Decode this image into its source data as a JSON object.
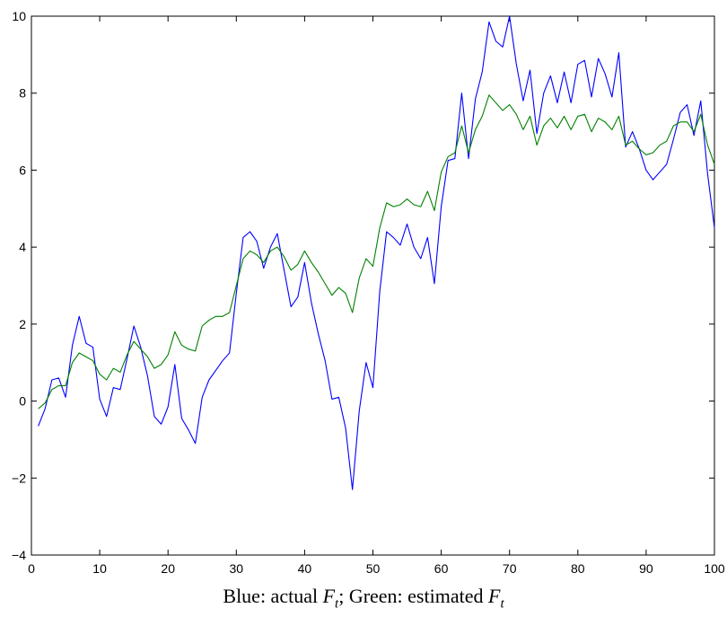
{
  "caption": {
    "blue_prefix": "Blue: actual ",
    "green_prefix": "; Green: estimated ",
    "var": "F",
    "sub": "t"
  },
  "chart_data": {
    "type": "line",
    "xlim": [
      0,
      100
    ],
    "ylim": [
      -4,
      10
    ],
    "xticks": [
      0,
      10,
      20,
      30,
      40,
      50,
      60,
      70,
      80,
      90,
      100
    ],
    "yticks": [
      -4,
      -2,
      0,
      2,
      4,
      6,
      8,
      10
    ],
    "ytick_labels": [
      "−4",
      "−2",
      "0",
      "2",
      "4",
      "6",
      "8",
      "10"
    ],
    "grid": false,
    "x": [
      1,
      2,
      3,
      4,
      5,
      6,
      7,
      8,
      9,
      10,
      11,
      12,
      13,
      14,
      15,
      16,
      17,
      18,
      19,
      20,
      21,
      22,
      23,
      24,
      25,
      26,
      27,
      28,
      29,
      30,
      31,
      32,
      33,
      34,
      35,
      36,
      37,
      38,
      39,
      40,
      41,
      42,
      43,
      44,
      45,
      46,
      47,
      48,
      49,
      50,
      51,
      52,
      53,
      54,
      55,
      56,
      57,
      58,
      59,
      60,
      61,
      62,
      63,
      64,
      65,
      66,
      67,
      68,
      69,
      70,
      71,
      72,
      73,
      74,
      75,
      76,
      77,
      78,
      79,
      80,
      81,
      82,
      83,
      84,
      85,
      86,
      87,
      88,
      89,
      90,
      91,
      92,
      93,
      94,
      95,
      96,
      97,
      98,
      99,
      100
    ],
    "series": [
      {
        "color": "#0000ff",
        "values": [
          -0.65,
          -0.2,
          0.55,
          0.6,
          0.1,
          1.45,
          2.2,
          1.5,
          1.4,
          0.05,
          -0.4,
          0.35,
          0.3,
          1.1,
          1.95,
          1.4,
          0.65,
          -0.4,
          -0.6,
          -0.15,
          0.95,
          -0.45,
          -0.75,
          -1.1,
          0.1,
          0.55,
          0.8,
          1.05,
          1.25,
          2.8,
          4.25,
          4.4,
          4.15,
          3.45,
          4.0,
          4.35,
          3.4,
          2.45,
          2.7,
          3.6,
          2.55,
          1.75,
          1.05,
          0.05,
          0.1,
          -0.7,
          -2.3,
          -0.25,
          1.0,
          0.35,
          2.85,
          4.4,
          4.25,
          4.05,
          4.6,
          4.0,
          3.7,
          4.25,
          3.05,
          5.05,
          6.25,
          6.3,
          8.0,
          6.3,
          7.85,
          8.55,
          9.85,
          9.35,
          9.2,
          10.0,
          8.75,
          7.8,
          8.6,
          6.95,
          8.0,
          8.45,
          7.75,
          8.55,
          7.75,
          8.75,
          8.85,
          7.9,
          8.9,
          8.5,
          7.9,
          9.05,
          6.6,
          7.0,
          6.55,
          6.0,
          5.75,
          5.95,
          6.15,
          6.8,
          7.5,
          7.7,
          6.9,
          7.8,
          5.9,
          4.5
        ]
      },
      {
        "color": "#008000",
        "values": [
          -0.2,
          -0.05,
          0.3,
          0.4,
          0.4,
          1.0,
          1.25,
          1.15,
          1.05,
          0.7,
          0.55,
          0.85,
          0.75,
          1.2,
          1.55,
          1.35,
          1.15,
          0.85,
          0.95,
          1.2,
          1.8,
          1.45,
          1.35,
          1.3,
          1.95,
          2.1,
          2.2,
          2.2,
          2.3,
          3.0,
          3.7,
          3.9,
          3.8,
          3.6,
          3.9,
          4.0,
          3.75,
          3.4,
          3.55,
          3.9,
          3.6,
          3.35,
          3.05,
          2.75,
          2.95,
          2.8,
          2.3,
          3.2,
          3.7,
          3.5,
          4.5,
          5.15,
          5.05,
          5.1,
          5.25,
          5.1,
          5.05,
          5.45,
          4.95,
          5.95,
          6.35,
          6.45,
          7.15,
          6.45,
          7.05,
          7.4,
          7.95,
          7.75,
          7.55,
          7.7,
          7.45,
          7.05,
          7.4,
          6.65,
          7.15,
          7.35,
          7.1,
          7.4,
          7.05,
          7.4,
          7.45,
          7.0,
          7.35,
          7.25,
          7.05,
          7.4,
          6.65,
          6.75,
          6.55,
          6.4,
          6.45,
          6.65,
          6.75,
          7.15,
          7.25,
          7.25,
          7.0,
          7.45,
          6.65,
          6.15
        ]
      }
    ]
  }
}
